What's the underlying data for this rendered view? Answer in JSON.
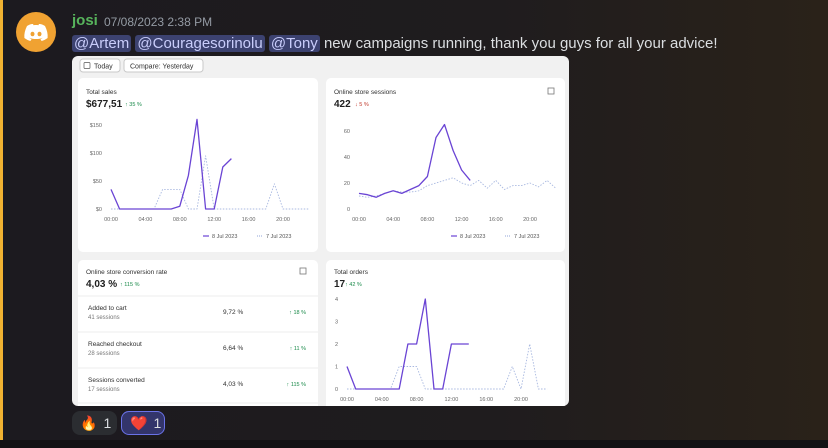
{
  "message": {
    "username": "josi",
    "timestamp": "07/08/2023 2:38 PM",
    "mentions": [
      "@Artem",
      "@Couragesorinolu",
      "@Tony"
    ],
    "text": "new campaigns running, thank you guys for all your advice!"
  },
  "embed": {
    "buttons": [
      "Today",
      "Compare: Yesterday"
    ],
    "cards": [
      {
        "title": "Total sales",
        "value": "$677,51",
        "change": "35 %",
        "chart": {
          "type": "line",
          "ylim": [
            0,
            150
          ],
          "yticks": [
            {
              "value": 0,
              "label": "$0"
            },
            {
              "value": 50,
              "label": "$50"
            },
            {
              "value": 100,
              "label": "$100"
            },
            {
              "value": 150,
              "label": "$150"
            }
          ],
          "xlim": [
            0,
            23
          ],
          "xticks": [
            {
              "value": 0,
              "label": "00:00"
            },
            {
              "value": 4,
              "label": "04:00"
            },
            {
              "value": 8,
              "label": "08:00"
            },
            {
              "value": 12,
              "label": "12:00"
            },
            {
              "value": 16,
              "label": "16:00"
            },
            {
              "value": 20,
              "label": "20:00"
            }
          ],
          "series": [
            {
              "name": "8 Jul 2023",
              "color": "#6a44d4",
              "values": [
                35,
                0,
                0,
                0,
                0,
                0,
                0,
                0,
                5,
                60,
                160,
                0,
                0,
                75,
                90
              ]
            },
            {
              "name": "7 Jul 2023",
              "color": "#a8b8e0",
              "values": [
                0,
                0,
                0,
                0,
                0,
                0,
                35,
                35,
                35,
                0,
                0,
                95,
                0,
                0,
                0,
                0,
                0,
                0,
                0,
                45,
                0,
                0,
                0,
                0
              ]
            }
          ]
        }
      },
      {
        "title": "Online store sessions",
        "value": "422",
        "change": "5 %",
        "chart": {
          "type": "line",
          "ylim": [
            0,
            60
          ],
          "yticks": [
            0,
            20,
            40,
            60
          ],
          "xlim": [
            0,
            23
          ],
          "xticks": [
            {
              "value": 0,
              "label": "00:00"
            },
            {
              "value": 4,
              "label": "04:00"
            },
            {
              "value": 8,
              "label": "08:00"
            },
            {
              "value": 12,
              "label": "12:00"
            },
            {
              "value": 16,
              "label": "16:00"
            },
            {
              "value": 20,
              "label": "20:00"
            }
          ],
          "series": [
            {
              "name": "8 Jul 2023",
              "color": "#6a44d4",
              "values": [
                12,
                11,
                9,
                12,
                14,
                12,
                15,
                18,
                25,
                55,
                65,
                45,
                30,
                22
              ]
            },
            {
              "name": "7 Jul 2023",
              "color": "#a8b8e0",
              "values": [
                10,
                9,
                10,
                12,
                14,
                13,
                13,
                14,
                18,
                20,
                22,
                24,
                20,
                18,
                22,
                16,
                22,
                15,
                18,
                18,
                20,
                17,
                22,
                16
              ]
            }
          ]
        }
      },
      {
        "title": "Online store conversion rate",
        "value": "4,03 %",
        "change": "115 %",
        "rows": [
          [
            "Added to cart",
            "41 sessions",
            "9,72 %",
            "18 %"
          ],
          [
            "Reached checkout",
            "28 sessions",
            "6,64 %",
            "11 %"
          ],
          [
            "Sessions converted",
            "17 sessions",
            "4,03 %",
            "115 %"
          ]
        ]
      },
      {
        "title": "Total orders",
        "value": "17",
        "change": "42 %",
        "chart": {
          "type": "line",
          "ylim": [
            0,
            4
          ],
          "yticks": [
            0,
            1,
            2,
            3,
            4
          ],
          "xlim": [
            0,
            23
          ],
          "xticks": [
            {
              "value": 0,
              "label": "00:00"
            },
            {
              "value": 4,
              "label": "04:00"
            },
            {
              "value": 8,
              "label": "08:00"
            },
            {
              "value": 12,
              "label": "12:00"
            },
            {
              "value": 16,
              "label": "16:00"
            },
            {
              "value": 20,
              "label": "20:00"
            }
          ],
          "series": [
            {
              "color": "#6a44d4",
              "values": [
                1,
                0,
                0,
                0,
                0,
                0,
                0,
                2,
                2,
                4,
                0,
                0,
                2,
                2,
                2
              ]
            },
            {
              "color": "#a8b8e0",
              "values": [
                0,
                0,
                0,
                0,
                0,
                0,
                1,
                1,
                1,
                0,
                0,
                0,
                0,
                0,
                0,
                0,
                0,
                0,
                0,
                1,
                0,
                2,
                0,
                0
              ]
            }
          ]
        }
      }
    ]
  },
  "reactions": [
    {
      "emoji": "🔥",
      "count": "1"
    },
    {
      "emoji": "❤️",
      "count": "1"
    }
  ]
}
